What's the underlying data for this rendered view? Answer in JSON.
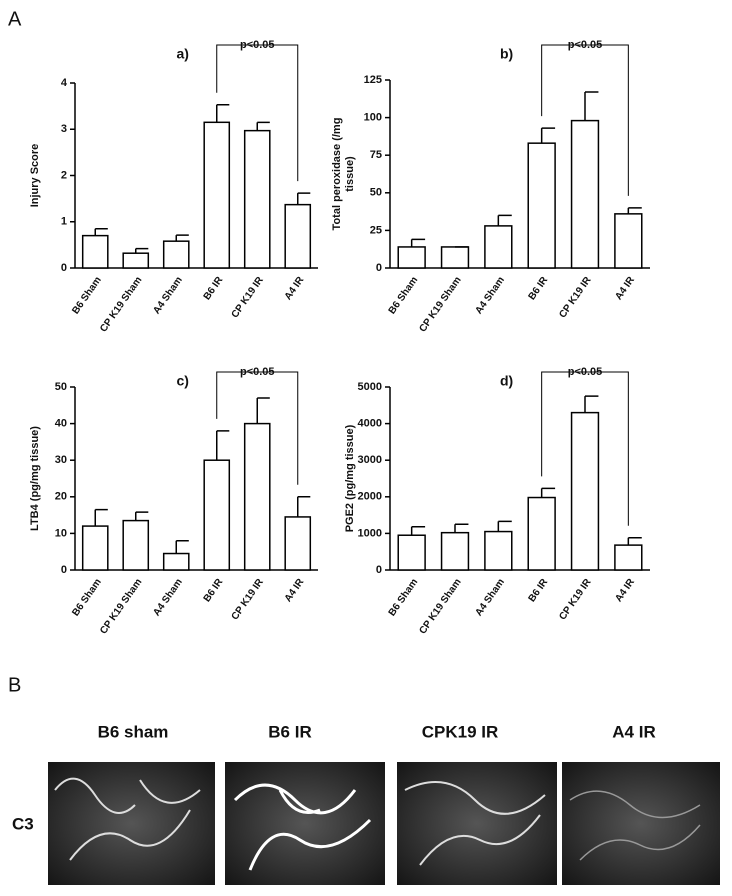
{
  "panel_a_label": "A",
  "chart_data": [
    {
      "type": "bar",
      "title": "a)",
      "ylabel": [
        "Injury Score"
      ],
      "categories": [
        "B6 Sham",
        "CP K19 Sham",
        "A4 Sham",
        "B6 IR",
        "CP K19 IR",
        "A4 IR"
      ],
      "values": [
        0.7,
        0.32,
        0.58,
        3.15,
        2.97,
        1.37
      ],
      "errors": [
        0.15,
        0.1,
        0.13,
        0.38,
        0.18,
        0.25
      ],
      "color": "#ffffff",
      "ylim": [
        0,
        4
      ],
      "yticks": [
        0,
        1,
        2,
        3,
        4
      ],
      "annotation": "p<0.05"
    },
    {
      "type": "bar",
      "title": "b)",
      "ylabel": [
        "Total peroxidase (/mg",
        "tissue)"
      ],
      "categories": [
        "B6 Sham",
        "CP K19 Sham",
        "A4 Sham",
        "B6 IR",
        "CP K19 IR",
        "A4 IR"
      ],
      "values": [
        14,
        14,
        28,
        83,
        98,
        36
      ],
      "errors": [
        5,
        0,
        7,
        10,
        19,
        4
      ],
      "color": "#ffffff",
      "ylim": [
        0,
        125
      ],
      "yticks": [
        0,
        25,
        50,
        75,
        100,
        125
      ],
      "annotation": "p<0.05"
    },
    {
      "type": "bar",
      "title": "c)",
      "ylabel": [
        "LTB4 (pg/mg tissue)"
      ],
      "categories": [
        "B6 Sham",
        "CP K19 Sham",
        "A4 Sham",
        "B6 IR",
        "CP K19 IR",
        "A4 IR"
      ],
      "values": [
        12,
        13.5,
        4.5,
        30,
        40,
        14.5
      ],
      "errors": [
        4.5,
        2.3,
        3.5,
        8,
        7,
        5.5
      ],
      "color": "#ffffff",
      "ylim": [
        0,
        50
      ],
      "yticks": [
        0,
        10,
        20,
        30,
        40,
        50
      ],
      "annotation": "p<0.05"
    },
    {
      "type": "bar",
      "title": "d)",
      "ylabel": [
        "PGE2 (pg/mg tissue)"
      ],
      "categories": [
        "B6 Sham",
        "CP K19 Sham",
        "A4 Sham",
        "B6 IR",
        "CP K19 IR",
        "A4 IR"
      ],
      "values": [
        950,
        1020,
        1050,
        1980,
        4300,
        680
      ],
      "errors": [
        230,
        230,
        280,
        250,
        450,
        200
      ],
      "color": "#ffffff",
      "ylim": [
        0,
        5000
      ],
      "yticks": [
        0,
        1000,
        2000,
        3000,
        4000,
        5000
      ],
      "annotation": "p<0.05"
    }
  ],
  "panel_b": {
    "label": "B",
    "columns": [
      "B6 sham",
      "B6 IR",
      "CPK19 IR",
      "A4 IR"
    ],
    "row_label": "C3"
  }
}
